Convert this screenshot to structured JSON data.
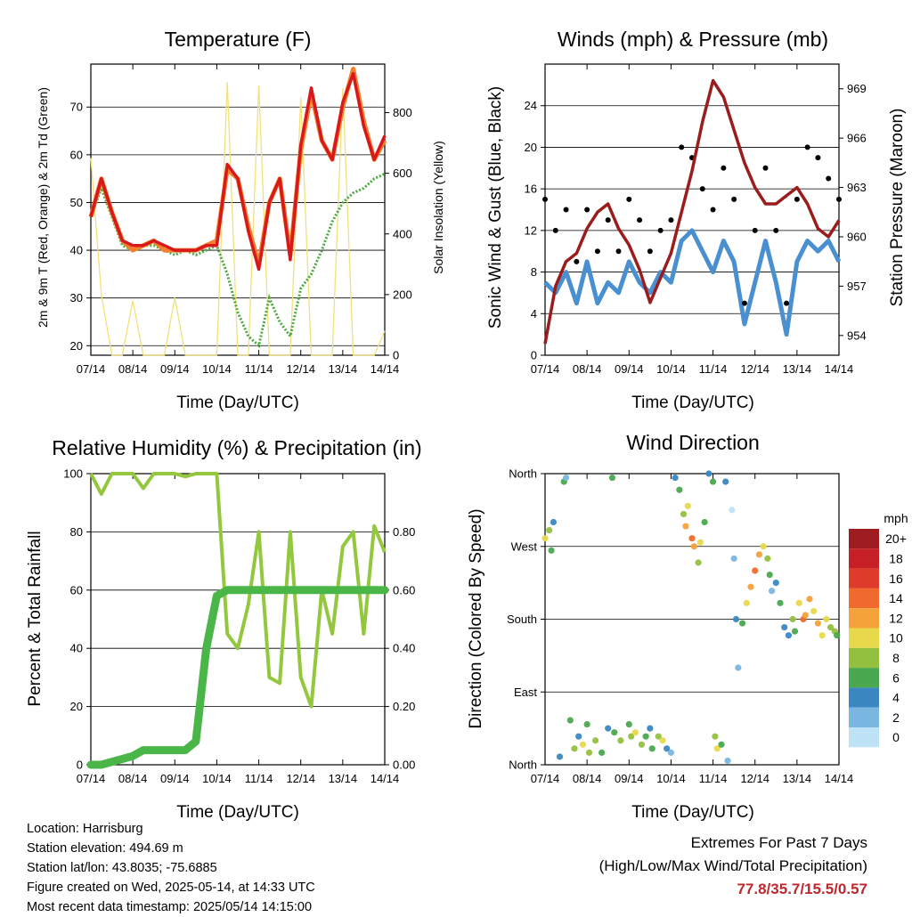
{
  "days": [
    "07/14",
    "08/14",
    "09/14",
    "10/14",
    "11/14",
    "12/14",
    "13/14",
    "14/14"
  ],
  "panels": {
    "temperature": {
      "title": "Temperature (F)",
      "xlabel": "Time (Day/UTC)",
      "ylabel_left": "2m & 9m T (Red, Orange) & 2m Td (Green)",
      "ylabel_right": "Solar Insolation (Yellow)",
      "left_ticks": [
        "20",
        "30",
        "40",
        "50",
        "60",
        "70"
      ],
      "right_ticks": [
        "0",
        "200",
        "400",
        "600",
        "800"
      ]
    },
    "winds": {
      "title": "Winds (mph) & Pressure (mb)",
      "xlabel": "Time (Day/UTC)",
      "ylabel_left": "Sonic Wind & Gust (Blue, Black)",
      "ylabel_right": "Station Pressure (Maroon)",
      "left_ticks": [
        "0",
        "4",
        "8",
        "12",
        "16",
        "20",
        "24"
      ],
      "right_ticks": [
        "954",
        "957",
        "960",
        "963",
        "966",
        "969"
      ]
    },
    "humidity": {
      "title": "Relative Humidity (%) & Precipitation (in)",
      "xlabel": "Time (Day/UTC)",
      "ylabel_left": "Percent & Total Rainfall",
      "left_ticks": [
        "0",
        "20",
        "40",
        "60",
        "80",
        "100"
      ],
      "right_ticks": [
        "0.00",
        "0.20",
        "0.40",
        "0.60",
        "0.80"
      ]
    },
    "direction": {
      "title": "Wind Direction",
      "xlabel": "Time (Day/UTC)",
      "ylabel_left": "Direction (Colored By Speed)",
      "left_ticks": [
        "North",
        "East",
        "South",
        "West",
        "North"
      ],
      "legend_title": "mph",
      "legend_labels": [
        "20+",
        "18",
        "16",
        "14",
        "12",
        "10",
        "8",
        "6",
        "4",
        "2",
        "0"
      ],
      "legend_colors": [
        "#9e1b1f",
        "#c62026",
        "#de3b2a",
        "#ef6a2c",
        "#f6a23a",
        "#e8d94a",
        "#93c03f",
        "#4aa84f",
        "#3a87c2",
        "#7ab7e0",
        "#bfe3f6"
      ]
    }
  },
  "chart_data": [
    {
      "type": "line",
      "title": "Temperature (F)",
      "xlabel": "Time (Day/UTC)",
      "ylabel": "2m & 9m T (Red, Orange) & 2m Td (Green)",
      "y2label": "Solar Insolation (Yellow)",
      "ylim": [
        18,
        79
      ],
      "y2lim": [
        0,
        960
      ],
      "x": [
        7.0,
        7.25,
        7.5,
        7.75,
        8.0,
        8.25,
        8.5,
        8.75,
        9.0,
        9.25,
        9.5,
        9.75,
        10.0,
        10.25,
        10.5,
        10.75,
        11.0,
        11.25,
        11.5,
        11.75,
        12.0,
        12.25,
        12.5,
        12.75,
        13.0,
        13.25,
        13.5,
        13.75,
        14.0
      ],
      "series": [
        {
          "name": "2m T",
          "color": "#d7191c",
          "values": [
            47,
            55,
            48,
            42,
            41,
            41,
            42,
            41,
            40,
            40,
            40,
            41,
            41,
            58,
            55,
            44,
            36,
            50,
            55,
            38,
            62,
            74,
            63,
            59,
            71,
            77,
            66,
            59,
            64
          ]
        },
        {
          "name": "9m T",
          "color": "#f47f2c",
          "values": [
            47,
            55,
            48,
            42,
            40,
            41,
            42,
            40,
            40,
            40,
            40,
            41,
            42,
            57,
            55,
            45,
            37,
            50,
            55,
            39,
            61,
            73,
            63,
            59,
            70,
            78,
            67,
            59,
            63
          ]
        },
        {
          "name": "2m Td",
          "color": "#4aaa3c",
          "values": [
            47,
            53,
            47,
            41,
            40,
            41,
            41,
            40,
            39,
            40,
            39,
            40,
            41,
            35,
            27,
            22,
            20,
            30,
            25,
            22,
            32,
            35,
            40,
            46,
            50,
            52,
            53,
            55,
            56
          ]
        },
        {
          "name": "Solar Insolation",
          "axis": "right",
          "color": "#f3e07a",
          "values": [
            650,
            200,
            0,
            0,
            180,
            0,
            0,
            0,
            190,
            0,
            0,
            0,
            0,
            900,
            0,
            0,
            890,
            0,
            0,
            0,
            850,
            0,
            0,
            0,
            880,
            0,
            0,
            0,
            80
          ]
        }
      ]
    },
    {
      "type": "line",
      "title": "Winds (mph) & Pressure (mb)",
      "xlabel": "Time (Day/UTC)",
      "ylabel": "Sonic Wind & Gust (Blue, Black)",
      "y2label": "Station Pressure (Maroon)",
      "ylim": [
        0,
        28
      ],
      "y2lim": [
        952.8,
        970.5
      ],
      "x": [
        7.0,
        7.25,
        7.5,
        7.75,
        8.0,
        8.25,
        8.5,
        8.75,
        9.0,
        9.25,
        9.5,
        9.75,
        10.0,
        10.25,
        10.5,
        10.75,
        11.0,
        11.25,
        11.5,
        11.75,
        12.0,
        12.25,
        12.5,
        12.75,
        13.0,
        13.25,
        13.5,
        13.75,
        14.0
      ],
      "series": [
        {
          "name": "Sonic Wind",
          "color": "#4a90d0",
          "values": [
            7,
            6,
            8,
            5,
            9,
            5,
            7,
            6,
            9,
            7,
            6,
            8,
            7,
            11,
            12,
            10,
            8,
            11,
            9,
            3,
            7,
            11,
            7,
            2,
            9,
            11,
            10,
            11,
            9
          ]
        },
        {
          "name": "Gust",
          "color": "#000000",
          "values": [
            15,
            12,
            14,
            9,
            14,
            10,
            13,
            10,
            15,
            13,
            10,
            12,
            13,
            20,
            19,
            16,
            14,
            18,
            15,
            5,
            12,
            18,
            12,
            5,
            15,
            20,
            19,
            17,
            15
          ]
        },
        {
          "name": "Station Pressure",
          "axis": "right",
          "color": "#9b1c1c",
          "values": [
            953.5,
            957.0,
            958.5,
            959.0,
            960.5,
            961.5,
            962.0,
            960.5,
            959.5,
            958.0,
            956.0,
            957.5,
            959.0,
            961.5,
            964.0,
            967.0,
            969.5,
            968.5,
            966.5,
            964.5,
            963.0,
            962.0,
            962.0,
            962.5,
            963.0,
            962.0,
            960.5,
            960.0,
            961.0
          ]
        }
      ]
    },
    {
      "type": "line",
      "title": "Relative Humidity (%) & Precipitation (in)",
      "xlabel": "Time (Day/UTC)",
      "ylabel": "Percent & Total Rainfall",
      "ylim": [
        0,
        100
      ],
      "y2lim": [
        0,
        1.0
      ],
      "x": [
        7.0,
        7.25,
        7.5,
        7.75,
        8.0,
        8.25,
        8.5,
        8.75,
        9.0,
        9.25,
        9.5,
        9.75,
        10.0,
        10.25,
        10.5,
        10.75,
        11.0,
        11.25,
        11.5,
        11.75,
        12.0,
        12.25,
        12.5,
        12.75,
        13.0,
        13.25,
        13.5,
        13.75,
        14.0
      ],
      "series": [
        {
          "name": "Relative Humidity",
          "color": "#93c83e",
          "values": [
            100,
            93,
            100,
            100,
            100,
            95,
            100,
            100,
            100,
            99,
            100,
            100,
            100,
            45,
            40,
            55,
            80,
            30,
            28,
            80,
            30,
            20,
            60,
            45,
            75,
            80,
            45,
            82,
            73
          ]
        },
        {
          "name": "Total Rainfall",
          "axis": "right",
          "color": "#4bb648",
          "values": [
            0.0,
            0.0,
            0.01,
            0.02,
            0.03,
            0.05,
            0.05,
            0.05,
            0.05,
            0.05,
            0.08,
            0.4,
            0.58,
            0.6,
            0.6,
            0.6,
            0.6,
            0.6,
            0.6,
            0.6,
            0.6,
            0.6,
            0.6,
            0.6,
            0.6,
            0.6,
            0.6,
            0.6,
            0.6
          ]
        }
      ]
    },
    {
      "type": "scatter",
      "title": "Wind Direction",
      "xlabel": "Time (Day/UTC)",
      "ylabel": "Direction (Colored By Speed)",
      "xlim": [
        7,
        14
      ],
      "ylim": [
        0,
        360
      ],
      "points": [
        [
          7.0,
          280,
          10
        ],
        [
          7.1,
          290,
          8
        ],
        [
          7.15,
          265,
          6
        ],
        [
          7.2,
          300,
          4
        ],
        [
          7.35,
          10,
          4
        ],
        [
          7.45,
          350,
          6
        ],
        [
          7.5,
          355,
          2
        ],
        [
          7.6,
          55,
          6
        ],
        [
          7.7,
          20,
          8
        ],
        [
          7.8,
          35,
          4
        ],
        [
          7.9,
          25,
          10
        ],
        [
          8.0,
          50,
          6
        ],
        [
          8.05,
          15,
          8
        ],
        [
          8.2,
          30,
          8
        ],
        [
          8.35,
          15,
          6
        ],
        [
          8.5,
          45,
          4
        ],
        [
          8.6,
          355,
          6
        ],
        [
          8.65,
          40,
          6
        ],
        [
          8.8,
          30,
          8
        ],
        [
          9.0,
          50,
          6
        ],
        [
          9.05,
          35,
          8
        ],
        [
          9.15,
          40,
          10
        ],
        [
          9.3,
          25,
          8
        ],
        [
          9.4,
          35,
          6
        ],
        [
          9.5,
          45,
          4
        ],
        [
          9.55,
          20,
          6
        ],
        [
          9.7,
          35,
          8
        ],
        [
          9.8,
          30,
          10
        ],
        [
          9.9,
          20,
          4
        ],
        [
          10.0,
          15,
          2
        ],
        [
          10.1,
          355,
          4
        ],
        [
          10.2,
          340,
          6
        ],
        [
          10.3,
          310,
          8
        ],
        [
          10.35,
          295,
          12
        ],
        [
          10.4,
          320,
          10
        ],
        [
          10.5,
          280,
          14
        ],
        [
          10.55,
          270,
          12
        ],
        [
          10.65,
          250,
          8
        ],
        [
          10.7,
          275,
          10
        ],
        [
          10.8,
          300,
          6
        ],
        [
          10.9,
          360,
          4
        ],
        [
          11.0,
          350,
          6
        ],
        [
          11.05,
          35,
          8
        ],
        [
          11.1,
          20,
          10
        ],
        [
          11.2,
          25,
          6
        ],
        [
          11.3,
          350,
          4
        ],
        [
          11.35,
          5,
          2
        ],
        [
          11.45,
          315,
          0
        ],
        [
          11.5,
          255,
          2
        ],
        [
          11.55,
          180,
          4
        ],
        [
          11.6,
          120,
          2
        ],
        [
          11.7,
          175,
          6
        ],
        [
          11.8,
          200,
          10
        ],
        [
          11.9,
          220,
          12
        ],
        [
          12.0,
          240,
          14
        ],
        [
          12.1,
          260,
          12
        ],
        [
          12.2,
          270,
          10
        ],
        [
          12.3,
          255,
          8
        ],
        [
          12.35,
          235,
          6
        ],
        [
          12.4,
          215,
          2
        ],
        [
          12.5,
          225,
          4
        ],
        [
          12.6,
          200,
          6
        ],
        [
          12.7,
          170,
          4
        ],
        [
          12.8,
          160,
          4
        ],
        [
          12.9,
          180,
          8
        ],
        [
          12.95,
          165,
          6
        ],
        [
          13.05,
          200,
          10
        ],
        [
          13.15,
          180,
          14
        ],
        [
          13.2,
          185,
          12
        ],
        [
          13.3,
          205,
          12
        ],
        [
          13.4,
          190,
          10
        ],
        [
          13.5,
          175,
          12
        ],
        [
          13.6,
          160,
          10
        ],
        [
          13.7,
          180,
          10
        ],
        [
          13.8,
          170,
          8
        ],
        [
          13.9,
          165,
          8
        ],
        [
          13.95,
          160,
          6
        ]
      ]
    }
  ],
  "footer": {
    "location": "Location: Harrisburg",
    "elevation": "Station elevation: 494.69 m",
    "latlon": "Station lat/lon: 43.8035; -75.6885",
    "created": "Figure created on Wed, 2025-05-14, at 14:33 UTC",
    "recent": "Most recent data timestamp: 2025/05/14 14:15:00"
  },
  "extremes": {
    "title": "Extremes For Past 7 Days",
    "subtitle": "(High/Low/Max Wind/Total Precipitation)",
    "values": "77.8/35.7/15.5/0.57"
  }
}
